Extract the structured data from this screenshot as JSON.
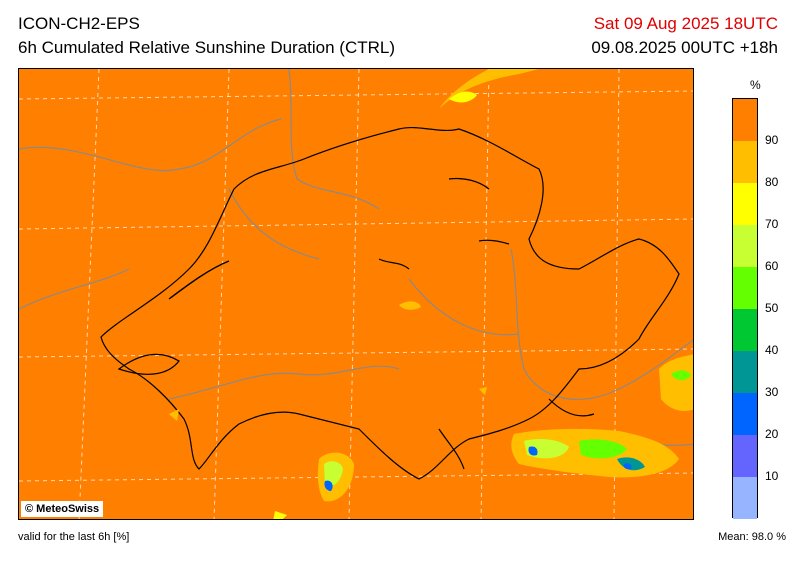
{
  "header": {
    "model": "ICON-CH2-EPS",
    "product": "6h Cumulated Relative Sunshine Duration (CTRL)",
    "valid_time": "Sat 09 Aug 2025 18UTC",
    "run_info": "09.08.2025 00UTC +18h"
  },
  "map": {
    "copyright": "© MeteoSwiss",
    "background_color": "#ff7f00"
  },
  "legend": {
    "unit": "%",
    "ticks": [
      "90",
      "80",
      "70",
      "60",
      "50",
      "40",
      "30",
      "20",
      "10"
    ],
    "colors": [
      "#ff7f00",
      "#ffbf00",
      "#ffff00",
      "#c8ff32",
      "#64ff00",
      "#00c832",
      "#009696",
      "#0064ff",
      "#6464ff",
      "#96b4ff"
    ]
  },
  "footer": {
    "validity": "valid for the last 6h [%]",
    "mean": "Mean:   98.0 %"
  }
}
